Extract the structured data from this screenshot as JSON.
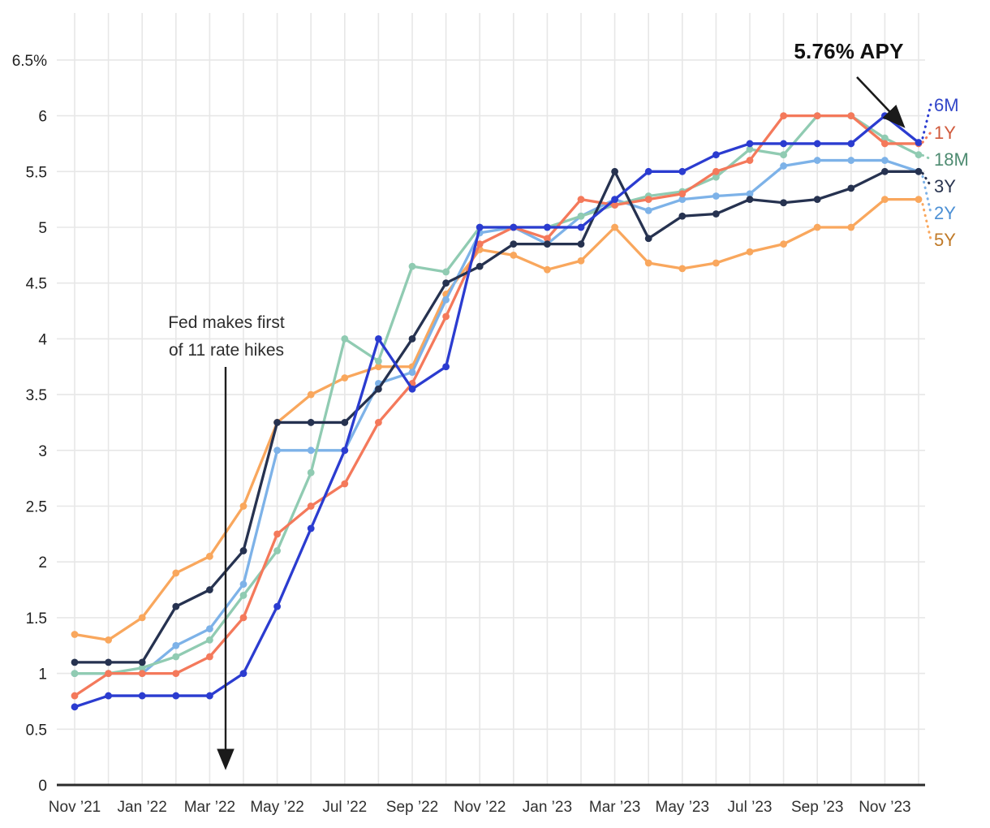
{
  "annotations": {
    "apy_label": "5.76% APY",
    "fed_line1": "Fed makes first",
    "fed_line2": "of 11 rate hikes"
  },
  "chart_data": {
    "type": "line",
    "title": "",
    "xlabel": "",
    "ylabel": "",
    "ylim": [
      0,
      6.75
    ],
    "grid": "both",
    "legend_position": "right",
    "axis_color": "#2b2b2b",
    "gridline_color": "#e7e7e7",
    "x_tick_labels": [
      "Nov ’21",
      "Jan ’22",
      "Mar ’22",
      "May ’22",
      "Jul ’22",
      "Sep ’22",
      "Nov ’22",
      "Jan ’23",
      "Mar ’23",
      "May ’23",
      "Jul ’23",
      "Sep ’23",
      "Nov ’23"
    ],
    "y_ticks": [
      0,
      0.5,
      1,
      1.5,
      2,
      2.5,
      3,
      3.5,
      4,
      4.5,
      5,
      5.5,
      6,
      6.5
    ],
    "y_tick_labels": [
      "0",
      "0.5",
      "1",
      "1.5",
      "2",
      "2.5",
      "3",
      "3.5",
      "4",
      "4.5",
      "5",
      "5.5",
      "6",
      "6.5%"
    ],
    "x_points": [
      "Nov 2021",
      "Dec 2021",
      "Jan 2022",
      "Feb 2022",
      "Mar 2022",
      "Apr 2022",
      "May 2022",
      "Jun 2022",
      "Jul 2022",
      "Aug 2022",
      "Sep 2022",
      "Oct 2022",
      "Nov 2022",
      "Dec 2022",
      "Jan 2023",
      "Feb 2023",
      "Mar 2023",
      "Apr 2023",
      "May 2023",
      "Jun 2023",
      "Jul 2023",
      "Aug 2023",
      "Sep 2023",
      "Oct 2023",
      "Nov 2023",
      "Dec 2023"
    ],
    "series": [
      {
        "name": "6M",
        "color": "#2b3cd0",
        "label_color": "#3246c8",
        "values": [
          0.7,
          0.8,
          0.8,
          0.8,
          0.8,
          1.0,
          1.6,
          2.3,
          3.0,
          4.0,
          3.55,
          3.75,
          5.0,
          5.0,
          5.0,
          5.0,
          5.25,
          5.5,
          5.5,
          5.65,
          5.75,
          5.75,
          5.75,
          5.75,
          6.0,
          5.76
        ]
      },
      {
        "name": "1Y",
        "color": "#f4795b",
        "label_color": "#d05a3c",
        "values": [
          0.8,
          1.0,
          1.0,
          1.0,
          1.15,
          1.5,
          2.25,
          2.5,
          2.7,
          3.25,
          3.6,
          4.2,
          4.85,
          5.0,
          4.9,
          5.25,
          5.2,
          5.25,
          5.3,
          5.5,
          5.6,
          6.0,
          6.0,
          6.0,
          5.75,
          5.75
        ]
      },
      {
        "name": "18M",
        "color": "#90cbb2",
        "label_color": "#4e8b71",
        "values": [
          1.0,
          1.0,
          1.05,
          1.15,
          1.3,
          1.7,
          2.1,
          2.8,
          4.0,
          3.8,
          4.65,
          4.6,
          5.0,
          5.0,
          5.0,
          5.1,
          5.2,
          5.28,
          5.32,
          5.45,
          5.7,
          5.65,
          6.0,
          6.0,
          5.8,
          5.65
        ]
      },
      {
        "name": "3Y",
        "color": "#263250",
        "label_color": "#2a3550",
        "values": [
          1.1,
          1.1,
          1.1,
          1.6,
          1.75,
          2.1,
          3.25,
          3.25,
          3.25,
          3.55,
          4.0,
          4.5,
          4.65,
          4.85,
          4.85,
          4.85,
          5.5,
          4.9,
          5.1,
          5.12,
          5.25,
          5.22,
          5.25,
          5.35,
          5.5,
          5.5
        ]
      },
      {
        "name": "2Y",
        "color": "#7db2e8",
        "label_color": "#4b8fd4",
        "values": [
          1.0,
          1.0,
          1.0,
          1.25,
          1.4,
          1.8,
          3.0,
          3.0,
          3.0,
          3.6,
          3.7,
          4.35,
          4.95,
          5.0,
          4.85,
          5.1,
          5.25,
          5.15,
          5.25,
          5.28,
          5.3,
          5.55,
          5.6,
          5.6,
          5.6,
          5.5
        ]
      },
      {
        "name": "5Y",
        "color": "#f9a75d",
        "label_color": "#c07a28",
        "values": [
          1.35,
          1.3,
          1.5,
          1.9,
          2.05,
          2.5,
          3.25,
          3.5,
          3.65,
          3.75,
          3.75,
          4.4,
          4.8,
          4.75,
          4.62,
          4.7,
          5.0,
          4.68,
          4.63,
          4.68,
          4.78,
          4.85,
          5.0,
          5.0,
          5.25,
          5.25
        ]
      }
    ]
  }
}
